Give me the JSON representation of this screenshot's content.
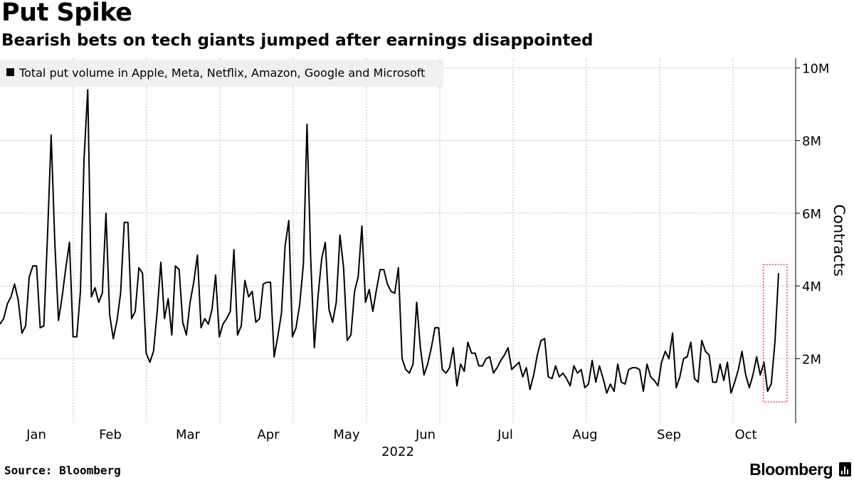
{
  "header": {
    "title": "Put Spike",
    "subtitle": "Bearish bets on tech giants jumped after earnings disappointed"
  },
  "footer": {
    "source": "Source: Bloomberg",
    "brand": "Bloomberg",
    "brand_icon": "bloomberg-chart-icon"
  },
  "colors": {
    "line": "#000000",
    "grid": "#bdbdbd",
    "legend_bg": "#f0f0f0",
    "highlight": "#e8465a"
  },
  "chart_data": {
    "type": "line",
    "title": "Put Spike",
    "subtitle": "Bearish bets on tech giants jumped after earnings disappointed",
    "xlabel": "2022",
    "ylabel": "Contracts",
    "ylim": [
      0,
      10.2
    ],
    "y_ticks": [
      2,
      4,
      6,
      8,
      10
    ],
    "y_tick_labels": [
      "2M",
      "4M",
      "6M",
      "8M",
      "10M"
    ],
    "x_tick_labels": [
      "Jan",
      "Feb",
      "Mar",
      "Apr",
      "May",
      "Jun",
      "Jul",
      "Aug",
      "Sep",
      "Oct"
    ],
    "year_label": "2022",
    "legend_placement": "top-left",
    "grid": true,
    "series": [
      {
        "name": "Total put volume in Apple, Meta, Netflix, Amazon, Google and Microsoft",
        "unit": "millions of contracts",
        "values": [
          2.95,
          3.1,
          3.5,
          3.7,
          4.05,
          3.6,
          2.7,
          2.9,
          4.25,
          4.55,
          4.55,
          2.85,
          2.9,
          5.4,
          8.15,
          5.2,
          3.05,
          3.7,
          4.5,
          5.2,
          2.6,
          2.6,
          3.85,
          7.5,
          9.4,
          3.7,
          3.95,
          3.55,
          3.8,
          6.0,
          3.2,
          2.55,
          3.05,
          3.8,
          5.75,
          5.75,
          3.1,
          3.3,
          4.5,
          4.35,
          2.15,
          1.9,
          2.2,
          3.3,
          4.65,
          3.1,
          3.65,
          2.65,
          4.55,
          4.45,
          3.0,
          2.65,
          3.55,
          4.1,
          4.85,
          2.85,
          3.1,
          2.95,
          3.35,
          4.3,
          2.6,
          2.95,
          3.1,
          3.3,
          5.0,
          2.65,
          2.9,
          4.15,
          3.7,
          3.85,
          3.0,
          3.1,
          4.05,
          4.1,
          4.1,
          2.05,
          2.6,
          3.25,
          5.1,
          5.8,
          2.6,
          2.85,
          3.5,
          4.6,
          8.45,
          4.75,
          2.3,
          3.7,
          4.75,
          5.2,
          3.35,
          3.0,
          3.55,
          5.4,
          4.5,
          2.5,
          2.65,
          3.85,
          4.25,
          5.65,
          3.55,
          3.9,
          3.3,
          3.9,
          4.45,
          4.45,
          4.05,
          3.85,
          3.8,
          4.5,
          2.0,
          1.7,
          1.6,
          1.85,
          3.55,
          2.3,
          1.55,
          1.85,
          2.3,
          2.85,
          2.85,
          1.7,
          1.6,
          1.75,
          2.3,
          1.25,
          1.85,
          1.65,
          2.45,
          2.15,
          2.15,
          1.8,
          1.8,
          2.0,
          2.05,
          1.6,
          1.75,
          1.95,
          2.1,
          2.3,
          1.7,
          1.8,
          1.9,
          1.5,
          1.75,
          1.15,
          1.55,
          2.1,
          2.5,
          2.55,
          1.5,
          1.45,
          1.8,
          1.5,
          1.6,
          1.45,
          1.25,
          1.8,
          1.6,
          1.7,
          1.2,
          1.3,
          1.95,
          1.35,
          1.8,
          1.45,
          1.05,
          1.3,
          1.1,
          1.85,
          1.35,
          1.3,
          1.7,
          1.75,
          1.75,
          1.7,
          1.1,
          1.85,
          1.5,
          1.4,
          1.25,
          1.9,
          2.2,
          2.0,
          2.7,
          1.2,
          1.5,
          2.0,
          2.05,
          2.45,
          1.45,
          1.35,
          2.5,
          2.2,
          2.1,
          1.35,
          1.35,
          1.85,
          1.4,
          1.9,
          1.05,
          1.35,
          1.7,
          2.2,
          1.55,
          1.2,
          1.55,
          2.05,
          1.55,
          1.9,
          1.1,
          1.3,
          2.45,
          4.35
        ]
      }
    ],
    "highlight": {
      "description": "latest spike",
      "range": [
        "last 3 points"
      ]
    }
  }
}
